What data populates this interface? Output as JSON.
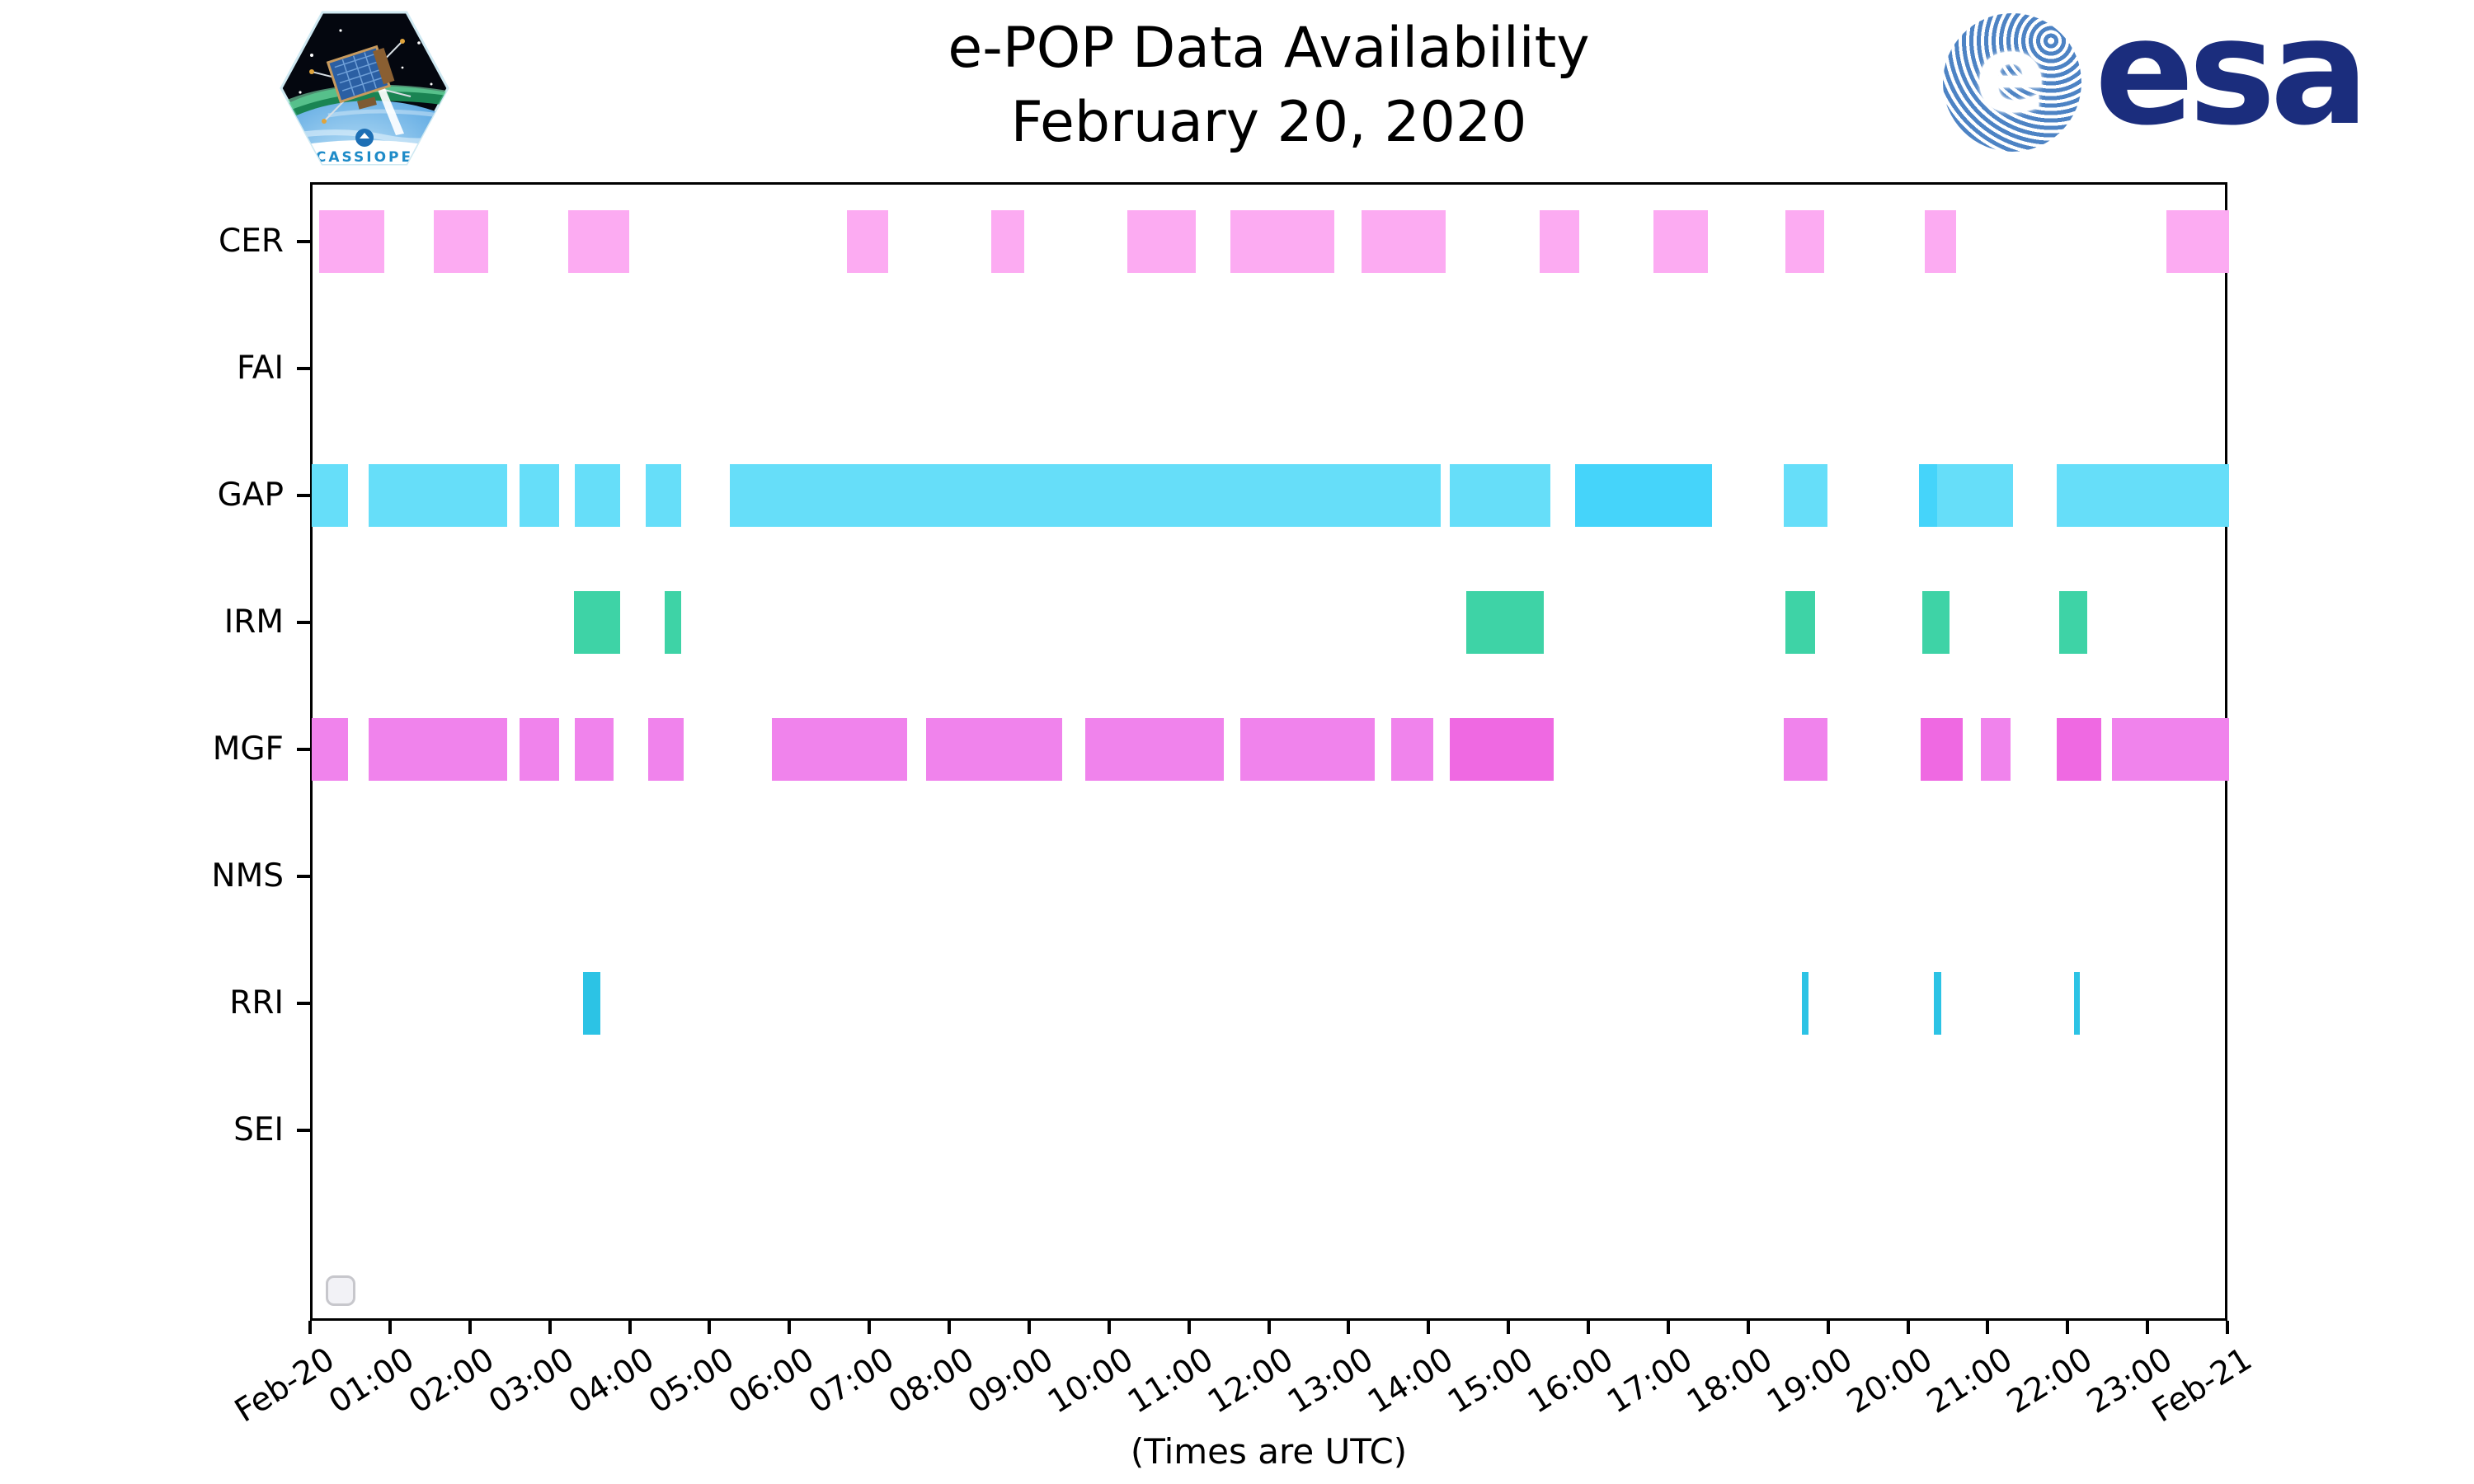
{
  "header": {
    "title": "e-POP Data Availability",
    "subtitle": "February 20, 2020"
  },
  "logos": {
    "esa_wordmark": "esa",
    "esa_globe_letter": "e",
    "patch_label": "CASSIOPE"
  },
  "chart_data": {
    "type": "timeline",
    "title": "e-POP Data Availability",
    "subtitle": "February 20, 2020",
    "xlabel": "(Times are UTC)",
    "x_range_hours": [
      0,
      24
    ],
    "grid": false,
    "legend": "none",
    "x_ticks": [
      "Feb-20",
      "01:00",
      "02:00",
      "03:00",
      "04:00",
      "05:00",
      "06:00",
      "07:00",
      "08:00",
      "09:00",
      "10:00",
      "11:00",
      "12:00",
      "13:00",
      "14:00",
      "15:00",
      "16:00",
      "17:00",
      "18:00",
      "19:00",
      "20:00",
      "21:00",
      "22:00",
      "23:00",
      "Feb-21"
    ],
    "rows": [
      {
        "label": "CER",
        "color": "#fcabf2",
        "dark_color": "#fcabf2",
        "bars": [
          {
            "s": 0.1,
            "e": 0.91
          },
          {
            "s": 1.53,
            "e": 2.21
          },
          {
            "s": 3.22,
            "e": 3.98
          },
          {
            "s": 6.7,
            "e": 7.22
          },
          {
            "s": 8.51,
            "e": 8.92
          },
          {
            "s": 10.21,
            "e": 11.07
          },
          {
            "s": 11.5,
            "e": 12.8
          },
          {
            "s": 13.15,
            "e": 14.2
          },
          {
            "s": 15.38,
            "e": 15.87
          },
          {
            "s": 16.8,
            "e": 17.48
          },
          {
            "s": 18.45,
            "e": 18.94
          },
          {
            "s": 20.2,
            "e": 20.59
          },
          {
            "s": 23.22,
            "e": 24.0
          }
        ]
      },
      {
        "label": "FAI",
        "color": "#fcabf2",
        "dark_color": "#fcabf2",
        "bars": []
      },
      {
        "label": "GAP",
        "color": "#66def9",
        "dark_color": "#45d4fa",
        "bars": [
          {
            "s": 0.0,
            "e": 0.46
          },
          {
            "s": 0.72,
            "e": 2.45
          },
          {
            "s": 2.61,
            "e": 3.1
          },
          {
            "s": 3.3,
            "e": 3.87
          },
          {
            "s": 4.19,
            "e": 4.63
          },
          {
            "s": 5.24,
            "e": 14.14
          },
          {
            "s": 14.25,
            "e": 15.51
          },
          {
            "s": 15.82,
            "e": 17.53,
            "shade": "dark"
          },
          {
            "s": 18.43,
            "e": 18.98
          },
          {
            "s": 20.12,
            "e": 20.35,
            "shade": "dark"
          },
          {
            "s": 20.35,
            "e": 21.3
          },
          {
            "s": 21.85,
            "e": 24.0
          }
        ]
      },
      {
        "label": "IRM",
        "color": "#3ed3a6",
        "dark_color": "#3ed3a6",
        "bars": [
          {
            "s": 3.29,
            "e": 3.87
          },
          {
            "s": 4.42,
            "e": 4.63
          },
          {
            "s": 14.46,
            "e": 15.43
          },
          {
            "s": 18.45,
            "e": 18.82
          },
          {
            "s": 20.17,
            "e": 20.51
          },
          {
            "s": 21.88,
            "e": 22.23
          }
        ]
      },
      {
        "label": "MGF",
        "color": "#f083ec",
        "dark_color": "#ef69e2",
        "bars": [
          {
            "s": 0.0,
            "e": 0.46
          },
          {
            "s": 0.72,
            "e": 2.45
          },
          {
            "s": 2.61,
            "e": 3.1
          },
          {
            "s": 3.3,
            "e": 3.78
          },
          {
            "s": 4.22,
            "e": 4.66
          },
          {
            "s": 5.76,
            "e": 7.46
          },
          {
            "s": 7.7,
            "e": 9.4
          },
          {
            "s": 9.69,
            "e": 11.42
          },
          {
            "s": 11.63,
            "e": 13.31
          },
          {
            "s": 13.52,
            "e": 14.04
          },
          {
            "s": 14.25,
            "e": 15.55,
            "shade": "dark"
          },
          {
            "s": 18.43,
            "e": 18.98
          },
          {
            "s": 20.14,
            "e": 20.67,
            "shade": "dark"
          },
          {
            "s": 20.9,
            "e": 21.27
          },
          {
            "s": 21.85,
            "e": 22.4,
            "shade": "dark"
          },
          {
            "s": 22.54,
            "e": 24.0
          }
        ]
      },
      {
        "label": "NMS",
        "color": "#f083ec",
        "dark_color": "#f083ec",
        "bars": []
      },
      {
        "label": "RRI",
        "color": "#2cc3e5",
        "dark_color": "#2cc3e5",
        "bars": [
          {
            "s": 3.4,
            "e": 3.62
          },
          {
            "s": 18.66,
            "e": 18.74
          },
          {
            "s": 20.31,
            "e": 20.4
          },
          {
            "s": 22.06,
            "e": 22.14
          }
        ]
      },
      {
        "label": "SEI",
        "color": "#2cc3e5",
        "dark_color": "#2cc3e5",
        "bars": []
      }
    ]
  }
}
